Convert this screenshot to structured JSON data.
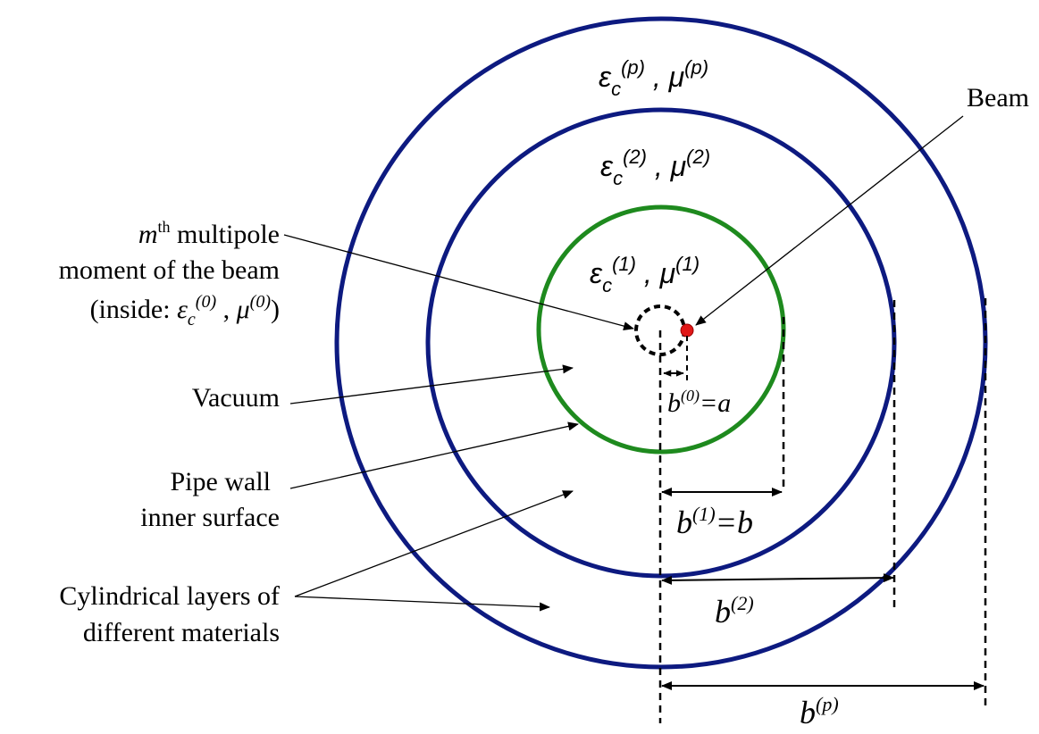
{
  "colors": {
    "outer_rings": "#0d1a80",
    "inner_ring": "#1e8a1e",
    "beam_dot": "#e01818",
    "lines": "#000000"
  },
  "regions": {
    "layer_p": {
      "eps": "ε",
      "eps_sub": "c",
      "eps_sup": "(p)",
      "sep": " , ",
      "mu": "μ",
      "mu_sup": "(p)"
    },
    "layer_2": {
      "eps": "ε",
      "eps_sub": "c",
      "eps_sup": "(2)",
      "sep": " , ",
      "mu": "μ",
      "mu_sup": "(2)"
    },
    "layer_1": {
      "eps": "ε",
      "eps_sub": "c",
      "eps_sup": "(1)",
      "sep": " , ",
      "mu": "μ",
      "mu_sup": "(1)"
    }
  },
  "labels": {
    "beam": "Beam",
    "multipole": {
      "m": "m",
      "th": "th",
      "line1_rest": " multipole",
      "line2": "moment of the beam",
      "inside_prefix": "(inside: ",
      "eps": "ε",
      "eps_sub": "c",
      "eps_sup": "(0)",
      "sep": " , ",
      "mu": "μ",
      "mu_sup": "(0)",
      "close": ")"
    },
    "vacuum": "Vacuum",
    "pipe_wall_1": "Pipe wall",
    "pipe_wall_2": "inner surface",
    "cyl_1": "Cylindrical layers of",
    "cyl_2": "different materials"
  },
  "dimensions": {
    "b0": {
      "b": "b",
      "sup": "(0)",
      "eq": "=a"
    },
    "b1": {
      "b": "b",
      "sup": "(1)",
      "eq": "=b"
    },
    "b2": {
      "b": "b",
      "sup": "(2)"
    },
    "bp": {
      "b": "b",
      "sup": "(p)"
    }
  },
  "icons": {
    "beam_marker": "red-dot",
    "multipole_marker": "dashed-circle",
    "arrows": "arrow-head"
  }
}
